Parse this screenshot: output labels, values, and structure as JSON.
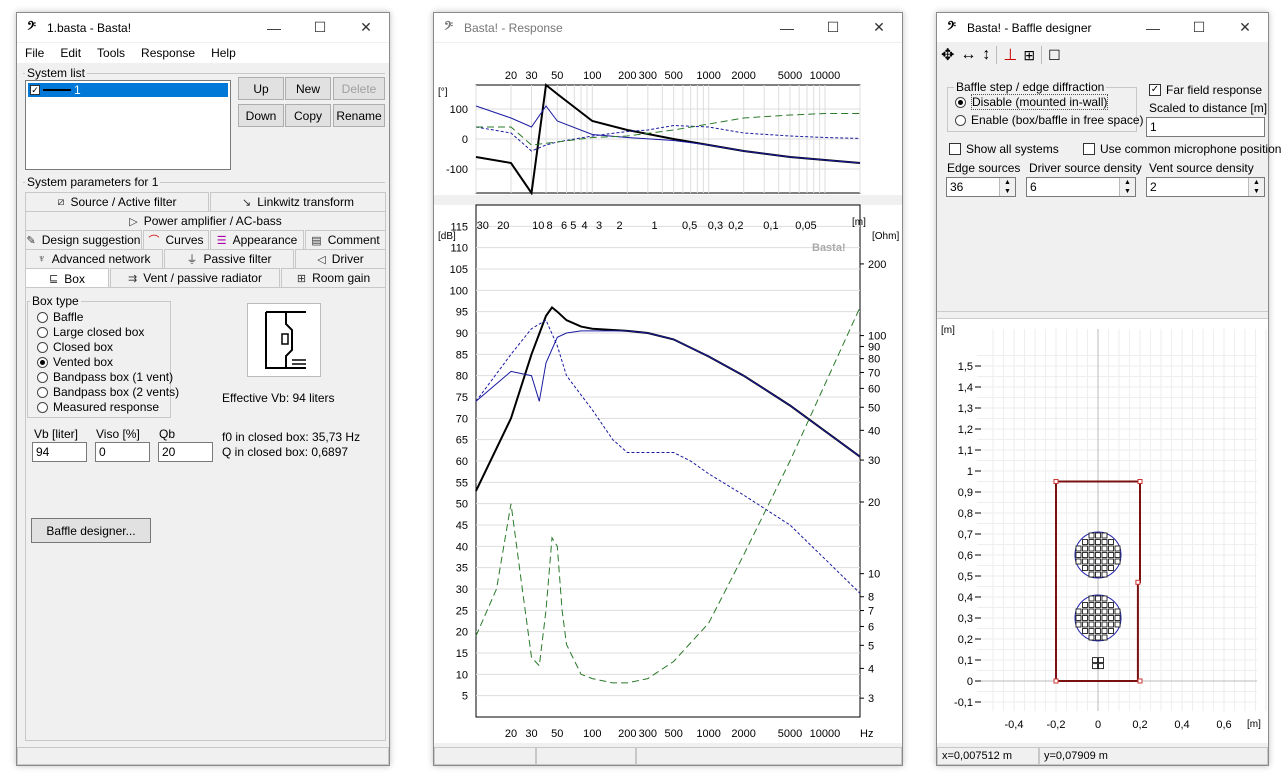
{
  "w1": {
    "title": "1.basta - Basta!",
    "menu": [
      "File",
      "Edit",
      "Tools",
      "Response",
      "Help"
    ],
    "system_list_label": "System list",
    "system_item": "1",
    "btn_up": "Up",
    "btn_new": "New",
    "btn_delete": "Delete",
    "btn_down": "Down",
    "btn_copy": "Copy",
    "btn_rename": "Rename",
    "params_label": "System parameters for 1",
    "tabs": {
      "source": "Source / Active filter",
      "linkwitz": "Linkwitz transform",
      "power": "Power amplifier / AC-bass",
      "design": "Design suggestion",
      "curves": "Curves",
      "appearance": "Appearance",
      "comment": "Comment",
      "advanced": "Advanced network",
      "passive": "Passive filter",
      "driver": "Driver",
      "box": "Box",
      "vent": "Vent / passive radiator",
      "room": "Room gain"
    },
    "boxtype_label": "Box type",
    "boxtypes": [
      "Baffle",
      "Large closed box",
      "Closed box",
      "Vented box",
      "Bandpass box (1 vent)",
      "Bandpass box (2 vents)",
      "Measured response"
    ],
    "effective_vb": "Effective Vb: 94 liters",
    "vb_label": "Vb [liter]",
    "viso_label": "Viso [%]",
    "qb_label": "Qb",
    "vb": "94",
    "viso": "0",
    "qb": "20",
    "f0": "f0 in closed box: 35,73 Hz",
    "q": "Q  in closed box: 0,6897",
    "baffle_btn": "Baffle designer..."
  },
  "w2": {
    "title": "Basta! - Response",
    "watermark": "Basta!",
    "phase_unit": "[°]",
    "db_unit": "[dB]",
    "ohm_unit": "[Ohm]",
    "m_unit": "[m]",
    "hz_unit": "Hz",
    "freq_ticks": [
      "20",
      "30",
      "50",
      "100",
      "200",
      "300",
      "500",
      "1000",
      "2000",
      "5000",
      "10000"
    ],
    "phase_ticks": [
      "100",
      "0",
      "-100"
    ],
    "db_ticks": [
      "115",
      "110",
      "105",
      "100",
      "95",
      "90",
      "85",
      "80",
      "75",
      "70",
      "65",
      "60",
      "55",
      "50",
      "45",
      "40",
      "35",
      "30",
      "25",
      "20",
      "15",
      "10",
      "5"
    ],
    "ohm_ticks": [
      "200",
      "100",
      "90",
      "80",
      "70",
      "60",
      "50",
      "40",
      "30",
      "20",
      "10",
      "8",
      "7",
      "6",
      "5",
      "4",
      "3"
    ],
    "wavelength_ticks": [
      "30",
      "20",
      "10",
      "8",
      "6",
      "5",
      "4",
      "3",
      "2",
      "1",
      "0,5",
      "0,3",
      "0,2",
      "0,1",
      "0,05"
    ]
  },
  "chart_data": [
    {
      "type": "line",
      "title": "",
      "xlabel": "Hz",
      "ylabel": "[°]",
      "xscale": "log",
      "xlim": [
        10,
        20000
      ],
      "ylim": [
        -180,
        180
      ],
      "series": [
        {
          "x": [
            10,
            20,
            30,
            40,
            50,
            100,
            200,
            500,
            1000,
            2000,
            5000,
            10000,
            20000
          ],
          "y": [
            -60,
            -80,
            -180,
            180,
            150,
            60,
            30,
            0,
            -20,
            -40,
            -60,
            -70,
            -80
          ]
        },
        {
          "x": [
            10,
            20,
            30,
            40,
            50,
            100,
            200,
            500,
            1000,
            2000,
            5000,
            10000,
            20000
          ],
          "y": [
            110,
            70,
            40,
            110,
            60,
            15,
            5,
            -5,
            -20,
            -40,
            -60,
            -70,
            -80
          ]
        },
        {
          "x": [
            10,
            20,
            30,
            40,
            50,
            100,
            200,
            300,
            500,
            1000,
            2000,
            5000,
            10000,
            20000
          ],
          "y": [
            40,
            20,
            -40,
            -20,
            -10,
            10,
            25,
            30,
            45,
            40,
            20,
            10,
            5,
            2
          ]
        },
        {
          "x": [
            10,
            20,
            30,
            50,
            100,
            200,
            500,
            1000,
            2000,
            5000,
            10000,
            20000
          ],
          "y": [
            40,
            40,
            -20,
            -10,
            5,
            10,
            30,
            50,
            70,
            80,
            85,
            85
          ]
        }
      ]
    },
    {
      "type": "line",
      "title": "",
      "xlabel": "Hz",
      "ylabel": "[dB]",
      "y2label": "[Ohm]",
      "xscale": "log",
      "xlim": [
        10,
        20000
      ],
      "ylim": [
        0,
        120
      ],
      "series": [
        {
          "x": [
            10,
            20,
            30,
            40,
            45,
            50,
            60,
            80,
            100,
            200,
            300,
            500,
            1000,
            2000,
            5000,
            10000,
            20000
          ],
          "y": [
            53,
            70,
            85,
            94,
            96,
            95,
            93,
            91.5,
            91,
            90.5,
            90,
            88.5,
            84.5,
            80,
            73,
            67,
            61
          ]
        },
        {
          "x": [
            10,
            20,
            30,
            35,
            40,
            50,
            60,
            80,
            100,
            200,
            300,
            500,
            1000,
            2000,
            5000,
            10000,
            20000
          ],
          "y": [
            74,
            81,
            80,
            74,
            83,
            89,
            90,
            90.5,
            90.5,
            90.5,
            90,
            88.5,
            84.5,
            80,
            73,
            67,
            61
          ]
        },
        {
          "x": [
            10,
            20,
            30,
            40,
            50,
            60,
            100,
            150,
            200,
            300,
            500,
            700,
            1000,
            2000,
            5000,
            10000,
            20000
          ],
          "y": [
            74,
            85,
            91,
            93,
            87,
            80,
            72,
            65,
            62,
            62,
            62,
            60,
            57,
            52,
            45,
            37,
            29
          ]
        },
        {
          "x": [
            10,
            15,
            20,
            25,
            30,
            35,
            40,
            45,
            50,
            55,
            60,
            80,
            100,
            150,
            200,
            300,
            500,
            1000,
            2000,
            5000,
            10000,
            20000
          ],
          "y": [
            19,
            30,
            50,
            30,
            14,
            12,
            25,
            42,
            40,
            25,
            17,
            10,
            9,
            8,
            8,
            9,
            13,
            22,
            38,
            60,
            78,
            96
          ]
        }
      ]
    }
  ],
  "w3": {
    "title": "Basta! - Baffle designer",
    "baffle_group": "Baffle step / edge diffraction",
    "opt_disable": "Disable (mounted in-wall)",
    "opt_enable": "Enable (box/baffle in free space)",
    "far_field": "Far field response",
    "scaled": "Scaled to distance [m]",
    "scaled_val": "1",
    "show_all": "Show all systems",
    "common_mic": "Use common microphone position",
    "edge_label": "Edge sources",
    "driver_label": "Driver source density",
    "vent_label": "Vent source density",
    "edge_val": "36",
    "driver_val": "6",
    "vent_val": "2",
    "unit": "[m]",
    "y_ticks": [
      "1,5",
      "1,4",
      "1,3",
      "1,2",
      "1,1",
      "1",
      "0,9",
      "0,8",
      "0,7",
      "0,6",
      "0,5",
      "0,4",
      "0,3",
      "0,2",
      "0,1",
      "0",
      "-0,1"
    ],
    "x_ticks": [
      "-0,4",
      "-0,2",
      "0",
      "0,2",
      "0,4",
      "0,6"
    ],
    "x_status": "x=0,007512 m",
    "y_status": "y=0,07909 m"
  }
}
